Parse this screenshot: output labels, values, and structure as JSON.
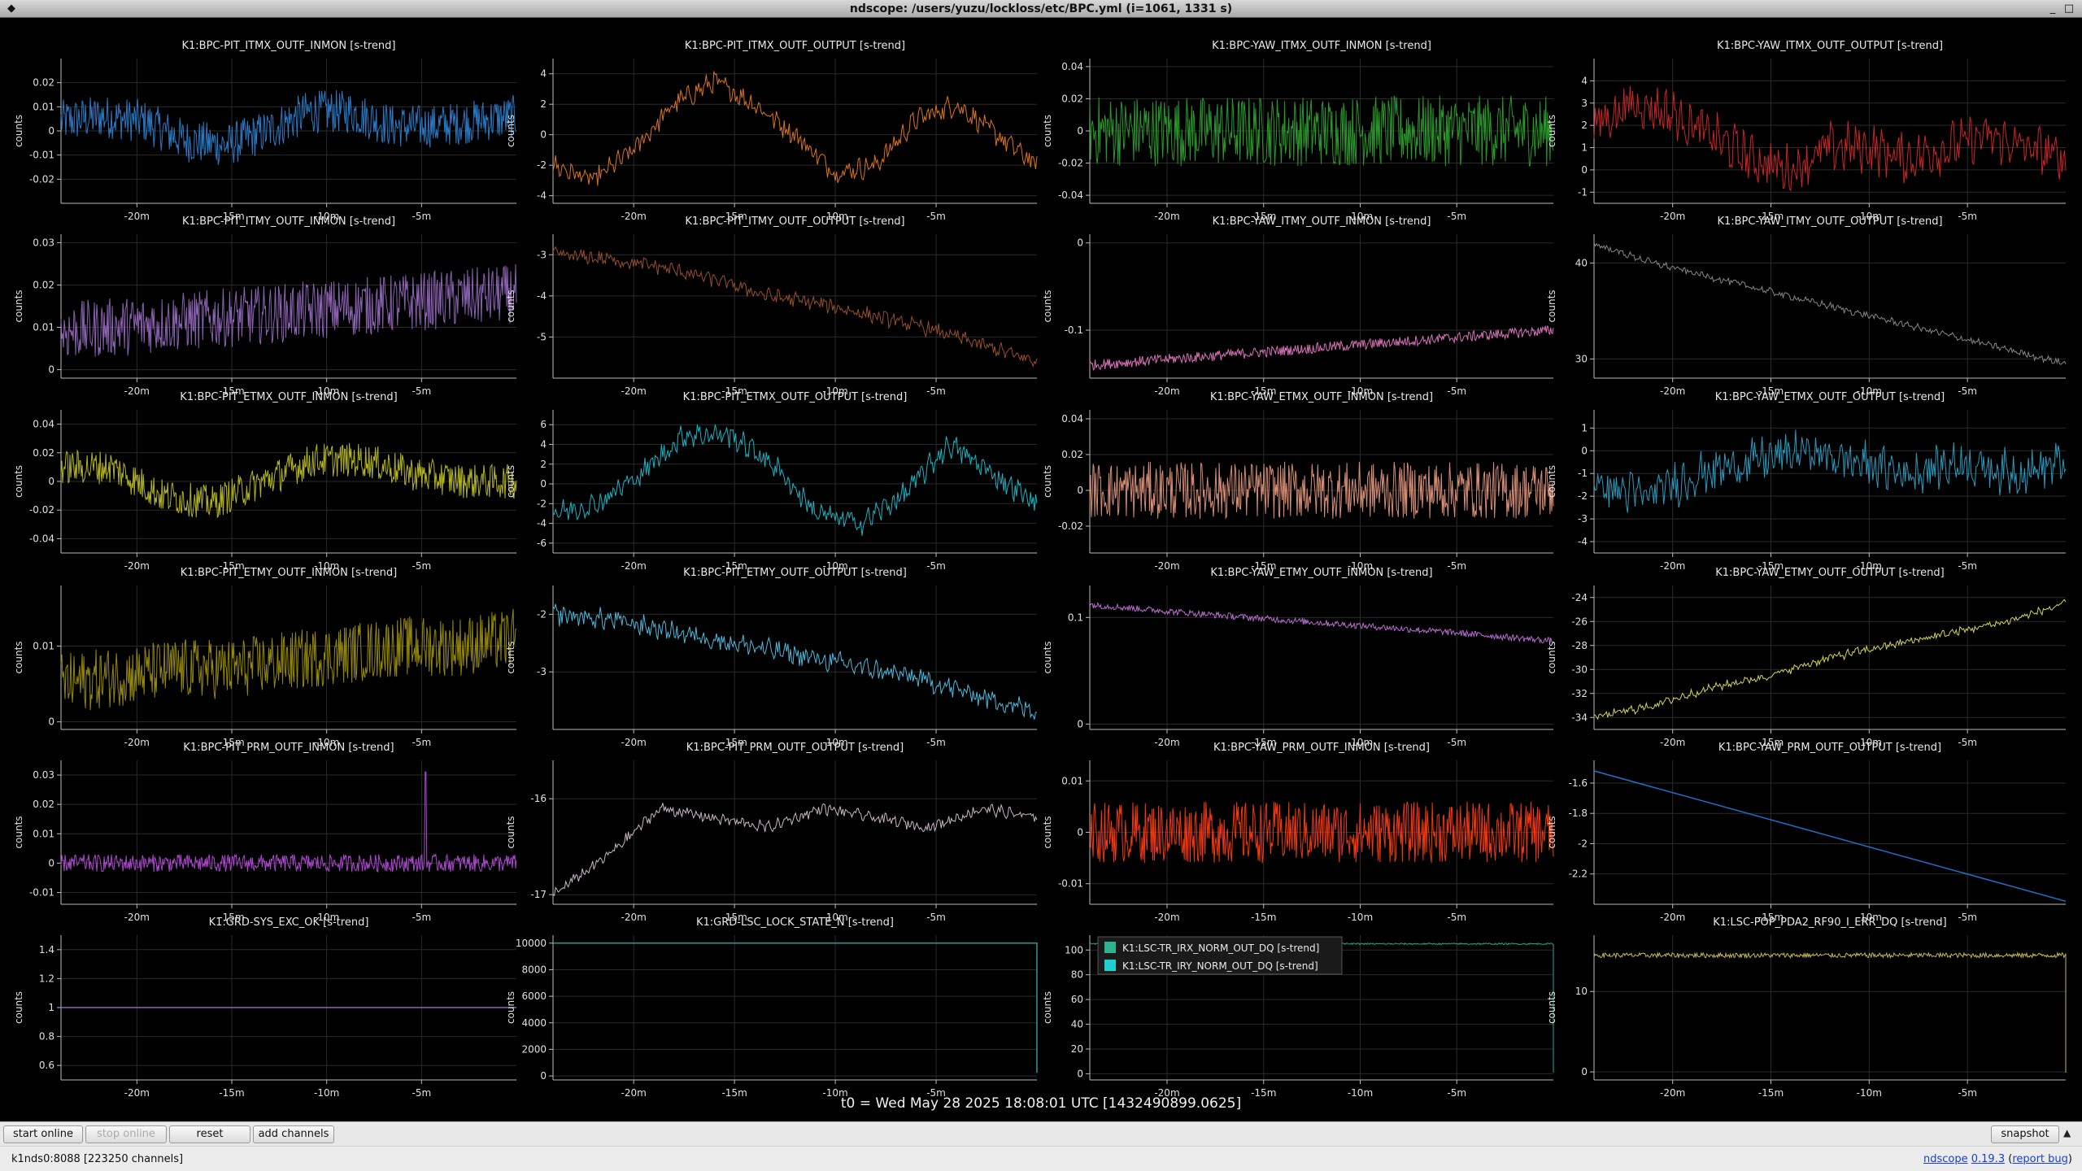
{
  "window": {
    "title": "ndscope: /users/yuzu/lockloss/etc/BPC.yml (i=1061, 1331 s)"
  },
  "t0_label": "t0 = Wed May 28 2025 18:08:01 UTC [1432490899.0625]",
  "toolbar": {
    "start_online": "start online",
    "stop_online": "stop online",
    "reset": "reset",
    "add_channels": "add channels",
    "snapshot": "snapshot"
  },
  "status": {
    "server": "k1nds0:8088 [223250 channels]",
    "app_name": "ndscope",
    "version": "0.19.3",
    "report_bug": "report bug"
  },
  "plots": [
    {
      "title": "K1:BPC-PIT_ITMX_OUTF_INMON [s-trend]",
      "ylabel": "counts",
      "color": "#2b7fd0",
      "ylim": [
        -0.03,
        0.03
      ],
      "yticks": [
        {
          "v": 0.02,
          "t": "0.02"
        },
        {
          "v": 0.01,
          "t": "0.01"
        },
        {
          "v": 0,
          "t": "0"
        },
        {
          "v": -0.01,
          "t": "-0.01"
        },
        {
          "v": -0.02,
          "t": "-0.02"
        }
      ],
      "xticks": [
        "-20m",
        "-15m",
        "-10m",
        "-5m"
      ],
      "chart_data": {
        "type": "line",
        "style": "noisy",
        "trend": [
          0.004,
          0.006,
          0.004,
          -0.004,
          -0.006,
          0.0,
          0.008,
          0.008,
          0.002,
          0.002,
          0.004,
          0.006
        ],
        "noise": 0.009
      }
    },
    {
      "title": "K1:BPC-PIT_ITMX_OUTF_OUTPUT [s-trend]",
      "ylabel": "counts",
      "color": "#e87a1a",
      "ylim": [
        -4.5,
        5
      ],
      "yticks": [
        {
          "v": 4,
          "t": "4"
        },
        {
          "v": 2,
          "t": "2"
        },
        {
          "v": 0,
          "t": "0"
        },
        {
          "v": -2,
          "t": "-2"
        },
        {
          "v": -4,
          "t": "-4"
        }
      ],
      "xticks": [
        "-20m",
        "-15m",
        "-10m",
        "-5m"
      ],
      "chart_data": {
        "type": "line",
        "style": "wiggle",
        "trend": [
          -2,
          -3,
          -1,
          2,
          3.5,
          2,
          0,
          -2.5,
          -2,
          1,
          2,
          0,
          -2
        ],
        "noise": 0.6
      }
    },
    {
      "title": "K1:BPC-YAW_ITMX_OUTF_INMON [s-trend]",
      "ylabel": "counts",
      "color": "#2ca02c",
      "ylim": [
        -0.045,
        0.045
      ],
      "yticks": [
        {
          "v": 0.04,
          "t": "0.04"
        },
        {
          "v": 0.02,
          "t": "0.02"
        },
        {
          "v": 0,
          "t": "0"
        },
        {
          "v": -0.02,
          "t": "-0.02"
        },
        {
          "v": -0.04,
          "t": "-0.04"
        }
      ],
      "xticks": [
        "-20m",
        "-15m",
        "-10m",
        "-5m"
      ],
      "chart_data": {
        "type": "line",
        "style": "noisy",
        "trend": [
          0,
          0,
          0,
          0,
          0,
          0,
          0,
          0,
          0,
          0,
          0
        ],
        "noise": 0.022
      }
    },
    {
      "title": "K1:BPC-YAW_ITMX_OUTF_OUTPUT [s-trend]",
      "ylabel": "counts",
      "color": "#d62728",
      "ylim": [
        -1.5,
        5
      ],
      "yticks": [
        {
          "v": 4,
          "t": "4"
        },
        {
          "v": 3,
          "t": "3"
        },
        {
          "v": 2,
          "t": "2"
        },
        {
          "v": 1,
          "t": "1"
        },
        {
          "v": 0,
          "t": "0"
        },
        {
          "v": -1,
          "t": "-1"
        }
      ],
      "xticks": [
        "-20m",
        "-15m",
        "-10m",
        "-5m"
      ],
      "chart_data": {
        "type": "line",
        "style": "wiggle",
        "trend": [
          2,
          3,
          2.5,
          1.5,
          0.5,
          0,
          1,
          1,
          0.5,
          1,
          1.5,
          1,
          0.5
        ],
        "noise": 0.9
      }
    },
    {
      "title": "K1:BPC-PIT_ITMY_OUTF_INMON [s-trend]",
      "ylabel": "counts",
      "color": "#9467bd",
      "ylim": [
        -0.002,
        0.032
      ],
      "yticks": [
        {
          "v": 0.03,
          "t": "0.03"
        },
        {
          "v": 0.02,
          "t": "0.02"
        },
        {
          "v": 0.01,
          "t": "0.01"
        },
        {
          "v": 0,
          "t": "0"
        }
      ],
      "xticks": [
        "-20m",
        "-15m",
        "-10m",
        "-5m"
      ],
      "chart_data": {
        "type": "line",
        "style": "noisy",
        "trend": [
          0.009,
          0.01,
          0.011,
          0.012,
          0.013,
          0.014,
          0.015,
          0.016,
          0.017,
          0.018
        ],
        "noise": 0.007
      }
    },
    {
      "title": "K1:BPC-PIT_ITMY_OUTF_OUTPUT [s-trend]",
      "ylabel": "counts",
      "color": "#a0522d",
      "ylim": [
        -6,
        -2.5
      ],
      "yticks": [
        {
          "v": -3,
          "t": "-3"
        },
        {
          "v": -4,
          "t": "-4"
        },
        {
          "v": -5,
          "t": "-5"
        }
      ],
      "xticks": [
        "-20m",
        "-15m",
        "-10m",
        "-5m"
      ],
      "chart_data": {
        "type": "line",
        "style": "wiggle",
        "trend": [
          -3,
          -3.1,
          -3.3,
          -3.6,
          -4,
          -4.2,
          -4.5,
          -4.8,
          -5.2,
          -5.6
        ],
        "noise": 0.15
      }
    },
    {
      "title": "K1:BPC-YAW_ITMY_OUTF_INMON [s-trend]",
      "ylabel": "counts",
      "color": "#e377c2",
      "ylim": [
        -0.155,
        0.01
      ],
      "yticks": [
        {
          "v": 0,
          "t": "0"
        },
        {
          "v": -0.1,
          "t": "-0.1"
        }
      ],
      "xticks": [
        "-20m",
        "-15m",
        "-10m",
        "-5m"
      ],
      "chart_data": {
        "type": "line",
        "style": "band",
        "trend": [
          -0.14,
          -0.13,
          -0.12,
          -0.11,
          -0.1
        ],
        "noise": 0.006
      }
    },
    {
      "title": "K1:BPC-YAW_ITMY_OUTF_OUTPUT [s-trend]",
      "ylabel": "counts",
      "color": "#8c8c8c",
      "ylim": [
        28,
        43
      ],
      "yticks": [
        {
          "v": 40,
          "t": "40"
        },
        {
          "v": 30,
          "t": "30"
        }
      ],
      "xticks": [
        "-20m",
        "-15m",
        "-10m",
        "-5m"
      ],
      "chart_data": {
        "type": "line",
        "style": "wiggle",
        "trend": [
          42,
          40,
          38.5,
          37,
          35.5,
          34,
          32.5,
          31,
          29.5
        ],
        "noise": 0.3
      }
    },
    {
      "title": "K1:BPC-PIT_ETMX_OUTF_INMON [s-trend]",
      "ylabel": "counts",
      "color": "#bcbd22",
      "ylim": [
        -0.05,
        0.05
      ],
      "yticks": [
        {
          "v": 0.04,
          "t": "0.04"
        },
        {
          "v": 0.02,
          "t": "0.02"
        },
        {
          "v": 0,
          "t": "0"
        },
        {
          "v": -0.02,
          "t": "-0.02"
        },
        {
          "v": -0.04,
          "t": "-0.04"
        }
      ],
      "xticks": [
        "-20m",
        "-15m",
        "-10m",
        "-5m"
      ],
      "chart_data": {
        "type": "line",
        "style": "noisy",
        "trend": [
          0.01,
          0.01,
          -0.01,
          -0.015,
          0.0,
          0.015,
          0.015,
          0.005,
          0.0,
          0.0
        ],
        "noise": 0.012
      }
    },
    {
      "title": "K1:BPC-PIT_ETMX_OUTF_OUTPUT [s-trend]",
      "ylabel": "counts",
      "color": "#17becf",
      "ylim": [
        -7,
        7.5
      ],
      "yticks": [
        {
          "v": 6,
          "t": "6"
        },
        {
          "v": 4,
          "t": "4"
        },
        {
          "v": 2,
          "t": "2"
        },
        {
          "v": 0,
          "t": "0"
        },
        {
          "v": -2,
          "t": "-2"
        },
        {
          "v": -4,
          "t": "-4"
        },
        {
          "v": -6,
          "t": "-6"
        }
      ],
      "xticks": [
        "-20m",
        "-15m",
        "-10m",
        "-5m"
      ],
      "chart_data": {
        "type": "line",
        "style": "wiggle",
        "trend": [
          -3,
          -2,
          1,
          5,
          5,
          2,
          -3,
          -4,
          -1,
          4,
          1,
          -2
        ],
        "noise": 1.0
      }
    },
    {
      "title": "K1:BPC-YAW_ETMX_OUTF_INMON [s-trend]",
      "ylabel": "counts",
      "color": "#e0957a",
      "ylim": [
        -0.035,
        0.045
      ],
      "yticks": [
        {
          "v": 0.04,
          "t": "0.04"
        },
        {
          "v": 0.02,
          "t": "0.02"
        },
        {
          "v": 0,
          "t": "0"
        },
        {
          "v": -0.02,
          "t": "-0.02"
        }
      ],
      "xticks": [
        "-20m",
        "-15m",
        "-10m",
        "-5m"
      ],
      "chart_data": {
        "type": "line",
        "style": "noisy",
        "trend": [
          0,
          0,
          0,
          0,
          0,
          0,
          0,
          0,
          0
        ],
        "noise": 0.016
      }
    },
    {
      "title": "K1:BPC-YAW_ETMX_OUTF_OUTPUT [s-trend]",
      "ylabel": "counts",
      "color": "#29a3c9",
      "ylim": [
        -4.5,
        1.8
      ],
      "yticks": [
        {
          "v": 1,
          "t": "1"
        },
        {
          "v": 0,
          "t": "0"
        },
        {
          "v": -1,
          "t": "-1"
        },
        {
          "v": -2,
          "t": "-2"
        },
        {
          "v": -3,
          "t": "-3"
        },
        {
          "v": -4,
          "t": "-4"
        }
      ],
      "xticks": [
        "-20m",
        "-15m",
        "-10m",
        "-5m"
      ],
      "chart_data": {
        "type": "line",
        "style": "wiggle",
        "trend": [
          -1.5,
          -2,
          -1,
          -0.5,
          0,
          -0.5,
          -1,
          -0.5,
          -1,
          -0.5
        ],
        "noise": 0.8
      }
    },
    {
      "title": "K1:BPC-PIT_ETMY_OUTF_INMON [s-trend]",
      "ylabel": "counts",
      "color": "#9c8f0a",
      "ylim": [
        -0.001,
        0.018
      ],
      "yticks": [
        {
          "v": 0.01,
          "t": "0.01"
        },
        {
          "v": 0,
          "t": "0"
        }
      ],
      "xticks": [
        "-20m",
        "-15m",
        "-10m",
        "-5m"
      ],
      "chart_data": {
        "type": "line",
        "style": "noisy",
        "trend": [
          0.005,
          0.006,
          0.007,
          0.007,
          0.008,
          0.009,
          0.01,
          0.01,
          0.011
        ],
        "noise": 0.004
      }
    },
    {
      "title": "K1:BPC-PIT_ETMY_OUTF_OUTPUT [s-trend]",
      "ylabel": "counts",
      "color": "#4fc3e8",
      "ylim": [
        -4,
        -1.5
      ],
      "yticks": [
        {
          "v": -2,
          "t": "-2"
        },
        {
          "v": -3,
          "t": "-3"
        }
      ],
      "xticks": [
        "-20m",
        "-15m",
        "-10m",
        "-5m"
      ],
      "chart_data": {
        "type": "line",
        "style": "wiggle",
        "trend": [
          -2,
          -2.1,
          -2.3,
          -2.5,
          -2.7,
          -2.9,
          -3.1,
          -3.4,
          -3.7
        ],
        "noise": 0.15
      }
    },
    {
      "title": "K1:BPC-YAW_ETMY_OUTF_INMON [s-trend]",
      "ylabel": "counts",
      "color": "#c071d8",
      "ylim": [
        -0.005,
        0.13
      ],
      "yticks": [
        {
          "v": 0.1,
          "t": "0.1"
        },
        {
          "v": 0,
          "t": "0"
        }
      ],
      "xticks": [
        "-20m",
        "-15m",
        "-10m",
        "-5m"
      ],
      "chart_data": {
        "type": "line",
        "style": "band",
        "trend": [
          0.112,
          0.103,
          0.095,
          0.087,
          0.078
        ],
        "noise": 0.003
      }
    },
    {
      "title": "K1:BPC-YAW_ETMY_OUTF_OUTPUT [s-trend]",
      "ylabel": "counts",
      "color": "#dede5a",
      "ylim": [
        -35,
        -23
      ],
      "yticks": [
        {
          "v": -24,
          "t": "-24"
        },
        {
          "v": -26,
          "t": "-26"
        },
        {
          "v": -28,
          "t": "-28"
        },
        {
          "v": -30,
          "t": "-30"
        },
        {
          "v": -32,
          "t": "-32"
        },
        {
          "v": -34,
          "t": "-34"
        }
      ],
      "xticks": [
        "-20m",
        "-15m",
        "-10m",
        "-5m"
      ],
      "chart_data": {
        "type": "line",
        "style": "wiggle",
        "trend": [
          -34,
          -33,
          -31.5,
          -30.5,
          -29,
          -28,
          -27,
          -26,
          -24.5
        ],
        "noise": 0.3
      }
    },
    {
      "title": "K1:BPC-PIT_PRM_OUTF_INMON [s-trend]",
      "ylabel": "counts",
      "color": "#b64bdc",
      "ylim": [
        -0.014,
        0.035
      ],
      "yticks": [
        {
          "v": 0.03,
          "t": "0.03"
        },
        {
          "v": 0.02,
          "t": "0.02"
        },
        {
          "v": 0.01,
          "t": "0.01"
        },
        {
          "v": 0,
          "t": "0"
        },
        {
          "v": -0.01,
          "t": "-0.01"
        }
      ],
      "xticks": [
        "-20m",
        "-15m",
        "-10m",
        "-5m"
      ],
      "chart_data": {
        "type": "line",
        "style": "noisy",
        "trend": [
          0,
          0,
          0,
          0,
          0,
          0,
          0,
          0
        ],
        "noise": 0.003,
        "spikes": [
          {
            "at": 0.8,
            "v": 0.031
          }
        ]
      }
    },
    {
      "title": "K1:BPC-PIT_PRM_OUTF_OUTPUT [s-trend]",
      "ylabel": "counts",
      "color": "#d4c0d0",
      "ylim": [
        -17.1,
        -15.6
      ],
      "yticks": [
        {
          "v": -16,
          "t": "-16"
        },
        {
          "v": -17,
          "t": "-17"
        }
      ],
      "xticks": [
        "-20m",
        "-15m",
        "-10m",
        "-5m"
      ],
      "chart_data": {
        "type": "line",
        "style": "wiggle",
        "trend": [
          -17,
          -16.6,
          -16.1,
          -16.2,
          -16.3,
          -16.1,
          -16.2,
          -16.3,
          -16.1,
          -16.2
        ],
        "noise": 0.05
      }
    },
    {
      "title": "K1:BPC-YAW_PRM_OUTF_INMON [s-trend]",
      "ylabel": "counts",
      "color": "#ff3b0f",
      "ylim": [
        -0.014,
        0.014
      ],
      "yticks": [
        {
          "v": 0.01,
          "t": "0.01"
        },
        {
          "v": 0,
          "t": "0"
        },
        {
          "v": -0.01,
          "t": "-0.01"
        }
      ],
      "xticks": [
        "-20m",
        "-15m",
        "-10m",
        "-5m"
      ],
      "chart_data": {
        "type": "line",
        "style": "noisy",
        "trend": [
          0,
          0,
          0,
          0,
          0,
          0,
          0
        ],
        "noise": 0.006
      }
    },
    {
      "title": "K1:BPC-YAW_PRM_OUTF_OUTPUT [s-trend]",
      "ylabel": "counts",
      "color": "#1f77d4",
      "ylim": [
        -2.4,
        -1.45
      ],
      "yticks": [
        {
          "v": -1.6,
          "t": "-1.6"
        },
        {
          "v": -1.8,
          "t": "-1.8"
        },
        {
          "v": -2,
          "t": "-2"
        },
        {
          "v": -2.2,
          "t": "-2.2"
        }
      ],
      "xticks": [
        "-20m",
        "-15m",
        "-10m",
        "-5m"
      ],
      "chart_data": {
        "type": "line",
        "style": "smooth",
        "trend": [
          -1.52,
          -2.38
        ],
        "noise": 0
      }
    },
    {
      "title": "K1:GRD-SYS_EXC_OK [s-trend]",
      "ylabel": "counts",
      "color": "#9467bd",
      "ylim": [
        0.5,
        1.5
      ],
      "yticks": [
        {
          "v": 1.4,
          "t": "1.4"
        },
        {
          "v": 1.2,
          "t": "1.2"
        },
        {
          "v": 1,
          "t": "1"
        },
        {
          "v": 0.8,
          "t": "0.8"
        },
        {
          "v": 0.6,
          "t": "0.6"
        }
      ],
      "xticks": [
        "-20m",
        "-15m",
        "-10m",
        "-5m"
      ],
      "chart_data": {
        "type": "line",
        "style": "smooth",
        "trend": [
          1,
          1
        ],
        "noise": 0
      }
    },
    {
      "title": "K1:GRD-LSC_LOCK_STATE_N [s-trend]",
      "ylabel": "counts",
      "color": "#2aa198",
      "ylim": [
        -300,
        10600
      ],
      "yticks": [
        {
          "v": 10000,
          "t": "10000"
        },
        {
          "v": 8000,
          "t": "8000"
        },
        {
          "v": 6000,
          "t": "6000"
        },
        {
          "v": 4000,
          "t": "4000"
        },
        {
          "v": 2000,
          "t": "2000"
        },
        {
          "v": 0,
          "t": "0"
        }
      ],
      "xticks": [
        "-20m",
        "-15m",
        "-10m",
        "-5m"
      ],
      "chart_data": {
        "type": "line",
        "style": "smooth",
        "trend": [
          10000,
          10000
        ],
        "noise": 0,
        "drop": true
      }
    },
    {
      "title": "",
      "ylabel": "counts",
      "color": "#26b59a",
      "ylim": [
        -5,
        112
      ],
      "yticks": [
        {
          "v": 100,
          "t": "100"
        },
        {
          "v": 80,
          "t": "80"
        },
        {
          "v": 60,
          "t": "60"
        },
        {
          "v": 40,
          "t": "40"
        },
        {
          "v": 20,
          "t": "20"
        },
        {
          "v": 0,
          "t": "0"
        }
      ],
      "xticks": [
        "-20m",
        "-15m",
        "-10m",
        "-5m"
      ],
      "legend": [
        {
          "name": "K1:LSC-TR_IRX_NORM_OUT_DQ [s-trend]",
          "color": "#2db38f"
        },
        {
          "name": "K1:LSC-TR_IRY_NORM_OUT_DQ [s-trend]",
          "color": "#1fd0d0"
        }
      ],
      "chart_data": {
        "type": "line",
        "style": "band",
        "trend": [
          105,
          105
        ],
        "noise": 0.6,
        "drop": true
      }
    },
    {
      "title": "K1:LSC-POP_PDA2_RF90_I_ERR_DQ [s-trend]",
      "ylabel": "counts",
      "color": "#cfc05a",
      "ylim": [
        -1,
        17
      ],
      "yticks": [
        {
          "v": 10,
          "t": "10"
        },
        {
          "v": 0,
          "t": "0"
        }
      ],
      "xticks": [
        "-20m",
        "-15m",
        "-10m",
        "-5m"
      ],
      "chart_data": {
        "type": "line",
        "style": "band",
        "trend": [
          14.5,
          14.5
        ],
        "noise": 0.3,
        "drop": true
      }
    }
  ]
}
